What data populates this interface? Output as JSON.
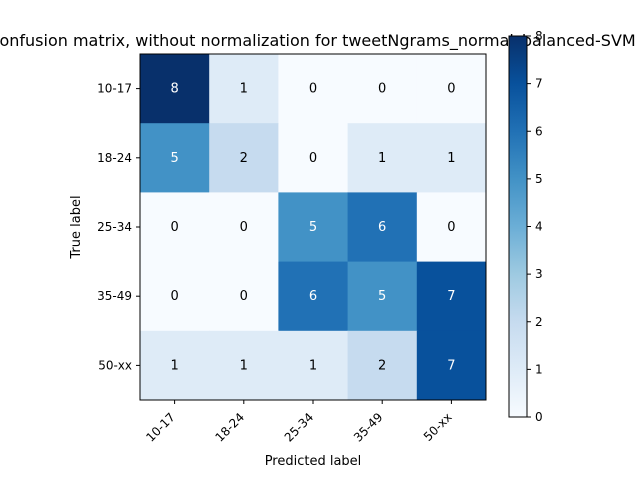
{
  "chart_data": {
    "type": "heatmap",
    "title": "Confusion matrix, without normalization for tweetNgrams_normal_balanced-SVM",
    "xlabel": "Predicted label",
    "ylabel": "True label",
    "x_categories": [
      "10-17",
      "18-24",
      "25-34",
      "35-49",
      "50-xx"
    ],
    "y_categories": [
      "10-17",
      "18-24",
      "25-34",
      "35-49",
      "50-xx"
    ],
    "values": [
      [
        8,
        1,
        0,
        0,
        0
      ],
      [
        5,
        2,
        0,
        1,
        1
      ],
      [
        0,
        0,
        5,
        6,
        0
      ],
      [
        0,
        0,
        6,
        5,
        7
      ],
      [
        1,
        1,
        1,
        2,
        7
      ]
    ],
    "colormap": "Blues",
    "colorbar": {
      "range": [
        0,
        8
      ],
      "ticks": [
        "0",
        "1",
        "2",
        "3",
        "4",
        "5",
        "6",
        "7",
        "8"
      ]
    },
    "grid": false
  }
}
